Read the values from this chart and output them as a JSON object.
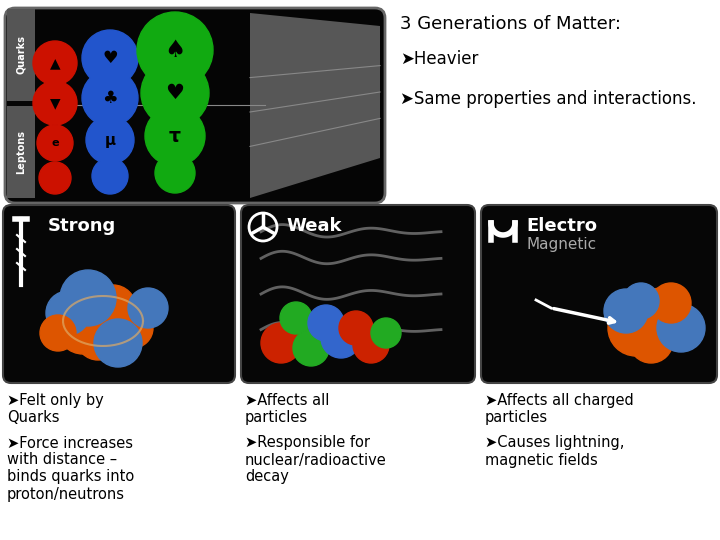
{
  "bg_color": "#ffffff",
  "title": "3 Generations of Matter:",
  "title_fontsize": 13,
  "title_fontweight": "normal",
  "top_right_bullets": [
    {
      "text": "✔Heavier",
      "fontsize": 12
    },
    {
      "text": "✔Same properties and interactions.",
      "fontsize": 12
    }
  ],
  "image_boxes": [
    {
      "label": "Strong",
      "label_color": "#ffffff"
    },
    {
      "label": "Weak",
      "label_color": "#ffffff"
    },
    {
      "label": "Electro\nMagnetic",
      "label_color": "#ffffff"
    }
  ],
  "bottom_bullets": [
    {
      "lines": [
        "✔Felt only by Quarks",
        "✔Force increases\nwith distance –\nbinds quarks into\nproton/neutrons"
      ]
    },
    {
      "lines": [
        "✔Affects all\nparticles",
        "✔Responsible for\nnuclear/radioactive\ndecay"
      ]
    },
    {
      "lines": [
        "✔Affects all charged\nparticles",
        "✔Causes lightning,\nmagnetic fields"
      ]
    }
  ],
  "box_bg": "#0a0a0a",
  "top_box_bg": "#050505"
}
